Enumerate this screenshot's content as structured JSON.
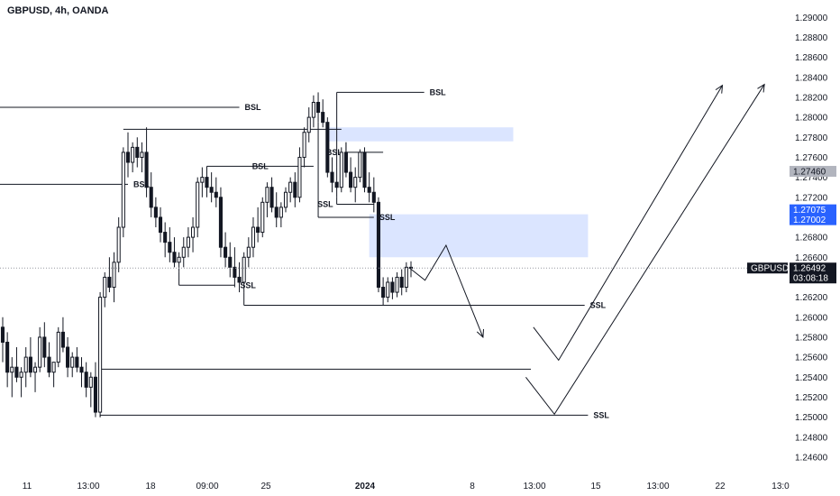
{
  "header": {
    "title": "GBPUSD, 4h, OANDA"
  },
  "chart_data": {
    "type": "candlestick",
    "symbol": "GBPUSD",
    "timeframe": "4h",
    "source": "OANDA",
    "ylim": [
      1.245,
      1.2912
    ],
    "y_ticks": [
      "1.29000",
      "1.28800",
      "1.28600",
      "1.28400",
      "1.28200",
      "1.28000",
      "1.27800",
      "1.27600",
      "1.27400",
      "1.27200",
      "1.27000",
      "1.26800",
      "1.26600",
      "1.26400",
      "1.26200",
      "1.26000",
      "1.25800",
      "1.25600",
      "1.25400",
      "1.25200",
      "1.25000",
      "1.24800",
      "1.24600"
    ],
    "x_ticks": [
      {
        "label": "11",
        "bold": false
      },
      {
        "label": "13:00",
        "bold": false
      },
      {
        "label": "18",
        "bold": false
      },
      {
        "label": "09:00",
        "bold": false
      },
      {
        "label": "25",
        "bold": false
      },
      {
        "label": "2024",
        "bold": true
      },
      {
        "label": "8",
        "bold": false
      },
      {
        "label": "13:00",
        "bold": false
      },
      {
        "label": "15",
        "bold": false
      },
      {
        "label": "13:00",
        "bold": false
      },
      {
        "label": "22",
        "bold": false
      },
      {
        "label": "13:0",
        "bold": false
      }
    ],
    "price_tags": [
      {
        "label": "1.27460",
        "price": 1.2746,
        "bg": "#b2b5be",
        "fg": "#131722"
      },
      {
        "label": "1.27075",
        "price": 1.27075,
        "bg": "#2962ff",
        "fg": "#ffffff"
      },
      {
        "label": "1.27002",
        "price": 1.27002,
        "bg": "#2962ff",
        "fg": "#ffffff"
      },
      {
        "label": "1.26492",
        "price": 1.26492,
        "bg": "#131722",
        "fg": "#ffffff"
      },
      {
        "label": "03:08:18",
        "price": 1.26492,
        "bg": "#131722",
        "fg": "#ffffff"
      }
    ],
    "current_price": 1.26492,
    "symbol_label": "GBPUSD",
    "candles": [
      [
        1.259,
        1.26,
        1.2555,
        1.2575
      ],
      [
        1.2575,
        1.2585,
        1.253,
        1.2545
      ],
      [
        1.2545,
        1.256,
        1.252,
        1.255
      ],
      [
        1.255,
        1.257,
        1.2535,
        1.254
      ],
      [
        1.254,
        1.255,
        1.252,
        1.2545
      ],
      [
        1.2545,
        1.257,
        1.253,
        1.256
      ],
      [
        1.256,
        1.258,
        1.254,
        1.2545
      ],
      [
        1.2545,
        1.2555,
        1.2525,
        1.255
      ],
      [
        1.255,
        1.259,
        1.2545,
        1.258
      ],
      [
        1.258,
        1.2595,
        1.255,
        1.256
      ],
      [
        1.256,
        1.2575,
        1.254,
        1.2545
      ],
      [
        1.2545,
        1.2555,
        1.253,
        1.2555
      ],
      [
        1.2555,
        1.259,
        1.255,
        1.2585
      ],
      [
        1.2585,
        1.26,
        1.2565,
        1.257
      ],
      [
        1.257,
        1.258,
        1.254,
        1.255
      ],
      [
        1.255,
        1.2565,
        1.254,
        1.256
      ],
      [
        1.256,
        1.257,
        1.2545,
        1.255
      ],
      [
        1.255,
        1.256,
        1.253,
        1.2545
      ],
      [
        1.2545,
        1.2555,
        1.252,
        1.253
      ],
      [
        1.253,
        1.2545,
        1.251,
        1.254
      ],
      [
        1.254,
        1.2555,
        1.25,
        1.2505
      ],
      [
        1.2505,
        1.2625,
        1.25,
        1.262
      ],
      [
        1.262,
        1.2645,
        1.261,
        1.264
      ],
      [
        1.264,
        1.266,
        1.2625,
        1.263
      ],
      [
        1.263,
        1.2665,
        1.2615,
        1.2655
      ],
      [
        1.2655,
        1.27,
        1.2645,
        1.269
      ],
      [
        1.269,
        1.277,
        1.268,
        1.2765
      ],
      [
        1.2765,
        1.2785,
        1.274,
        1.2755
      ],
      [
        1.2755,
        1.2775,
        1.2745,
        1.277
      ],
      [
        1.277,
        1.278,
        1.275,
        1.276
      ],
      [
        1.276,
        1.2775,
        1.2745,
        1.2765
      ],
      [
        1.2765,
        1.279,
        1.272,
        1.273
      ],
      [
        1.273,
        1.2745,
        1.27,
        1.271
      ],
      [
        1.271,
        1.272,
        1.269,
        1.27
      ],
      [
        1.27,
        1.271,
        1.2675,
        1.2685
      ],
      [
        1.2685,
        1.2695,
        1.266,
        1.2675
      ],
      [
        1.2675,
        1.269,
        1.2655,
        1.2665
      ],
      [
        1.2665,
        1.268,
        1.265,
        1.2655
      ],
      [
        1.2655,
        1.2665,
        1.2645,
        1.266
      ],
      [
        1.266,
        1.268,
        1.265,
        1.267
      ],
      [
        1.267,
        1.269,
        1.266,
        1.268
      ],
      [
        1.268,
        1.27,
        1.2665,
        1.269
      ],
      [
        1.269,
        1.274,
        1.268,
        1.2735
      ],
      [
        1.2735,
        1.275,
        1.272,
        1.274
      ],
      [
        1.274,
        1.275,
        1.272,
        1.273
      ],
      [
        1.273,
        1.2745,
        1.2715,
        1.2725
      ],
      [
        1.2725,
        1.274,
        1.271,
        1.272
      ],
      [
        1.272,
        1.273,
        1.266,
        1.267
      ],
      [
        1.267,
        1.2685,
        1.265,
        1.266
      ],
      [
        1.266,
        1.2675,
        1.264,
        1.265
      ],
      [
        1.265,
        1.267,
        1.263,
        1.264
      ],
      [
        1.264,
        1.2655,
        1.2625,
        1.2635
      ],
      [
        1.2635,
        1.2665,
        1.2625,
        1.266
      ],
      [
        1.266,
        1.268,
        1.265,
        1.267
      ],
      [
        1.267,
        1.27,
        1.266,
        1.269
      ],
      [
        1.269,
        1.271,
        1.2675,
        1.2685
      ],
      [
        1.2685,
        1.272,
        1.268,
        1.2715
      ],
      [
        1.2715,
        1.2735,
        1.27,
        1.273
      ],
      [
        1.273,
        1.274,
        1.2705,
        1.271
      ],
      [
        1.271,
        1.2725,
        1.269,
        1.27
      ],
      [
        1.27,
        1.2715,
        1.269,
        1.271
      ],
      [
        1.271,
        1.273,
        1.2705,
        1.2725
      ],
      [
        1.2725,
        1.274,
        1.2715,
        1.2735
      ],
      [
        1.2735,
        1.2745,
        1.271,
        1.272
      ],
      [
        1.272,
        1.277,
        1.2715,
        1.276
      ],
      [
        1.276,
        1.279,
        1.275,
        1.2785
      ],
      [
        1.2785,
        1.281,
        1.2775,
        1.28
      ],
      [
        1.28,
        1.2822,
        1.279,
        1.2815
      ],
      [
        1.2815,
        1.2825,
        1.2795,
        1.2805
      ],
      [
        1.2805,
        1.2818,
        1.279,
        1.2795
      ],
      [
        1.2795,
        1.28,
        1.274,
        1.2745
      ],
      [
        1.2745,
        1.276,
        1.2725,
        1.2735
      ],
      [
        1.2735,
        1.275,
        1.272,
        1.273
      ],
      [
        1.273,
        1.277,
        1.2725,
        1.2765
      ],
      [
        1.2765,
        1.2775,
        1.274,
        1.2745
      ],
      [
        1.2745,
        1.276,
        1.2725,
        1.273
      ],
      [
        1.273,
        1.275,
        1.2715,
        1.274
      ],
      [
        1.274,
        1.2768,
        1.2735,
        1.2765
      ],
      [
        1.2765,
        1.277,
        1.2725,
        1.273
      ],
      [
        1.273,
        1.2745,
        1.2715,
        1.2725
      ],
      [
        1.2725,
        1.274,
        1.2705,
        1.2715
      ],
      [
        1.2715,
        1.272,
        1.2625,
        1.263
      ],
      [
        1.263,
        1.264,
        1.2612,
        1.262
      ],
      [
        1.262,
        1.264,
        1.2615,
        1.2635
      ],
      [
        1.2635,
        1.264,
        1.2618,
        1.2625
      ],
      [
        1.2625,
        1.2645,
        1.262,
        1.264
      ],
      [
        1.264,
        1.2648,
        1.2622,
        1.263
      ],
      [
        1.263,
        1.2655,
        1.2625,
        1.265
      ],
      [
        1.265,
        1.2656,
        1.264,
        1.2649
      ]
    ],
    "zones": [
      {
        "price_top": 1.279,
        "price_bottom": 1.2776,
        "from_candle": 70,
        "to_x_frac": 0.611
      },
      {
        "price_top": 1.2703,
        "price_bottom": 1.266,
        "from_candle": 79,
        "to_x_frac": 0.7
      }
    ],
    "levels": [
      {
        "label": "BSL",
        "price": 1.281,
        "from_x_frac": 0.0,
        "to_candle": 51,
        "label_side": "end"
      },
      {
        "label": "BSL",
        "price": 1.2788,
        "from_candle": 26,
        "to_candle": 73,
        "label_side": "none"
      },
      {
        "label": "BSL",
        "price": 1.2825,
        "from_candle": 72,
        "to_x_frac": 0.505,
        "label_side": "end"
      },
      {
        "label": "BSL",
        "price": 1.2733,
        "from_x_frac": 0.0,
        "to_candle": 27,
        "label_side": "end"
      },
      {
        "label": "BSL",
        "price": 1.2751,
        "from_candle": 44,
        "to_candle": 67,
        "label_side": "mid"
      },
      {
        "label": "BSL",
        "price": 1.2765,
        "from_candle": 74,
        "to_candle": 82,
        "label_side": "start"
      },
      {
        "label": "SSL",
        "price": 1.2632,
        "from_candle": 38,
        "to_candle": 50,
        "label_side": "end"
      },
      {
        "label": "SSL",
        "price": 1.2713,
        "from_candle": 72,
        "to_candle": 80,
        "label_side": "start"
      },
      {
        "label": "SSL",
        "price": 1.27,
        "from_candle": 68,
        "to_candle": 80,
        "label_side": "end"
      },
      {
        "label": "SSL",
        "price": 1.2612,
        "from_candle": 52,
        "to_x_frac": 0.696,
        "label_side": "end"
      },
      {
        "label": "",
        "price": 1.2548,
        "from_candle": 21,
        "to_x_frac": 0.632,
        "label_side": "none"
      },
      {
        "label": "SSL",
        "price": 1.2502,
        "from_candle": 21,
        "to_x_frac": 0.7,
        "label_side": "end"
      }
    ],
    "projections": [
      [
        [
          0.488,
          1.2649
        ],
        [
          0.506,
          1.2637
        ],
        [
          0.531,
          1.2672
        ],
        [
          0.575,
          1.258
        ]
      ],
      [
        [
          0.635,
          1.259
        ],
        [
          0.665,
          1.2557
        ],
        [
          0.86,
          1.2832
        ]
      ],
      [
        [
          0.626,
          1.254
        ],
        [
          0.66,
          1.2503
        ],
        [
          0.91,
          1.2833
        ]
      ]
    ]
  }
}
